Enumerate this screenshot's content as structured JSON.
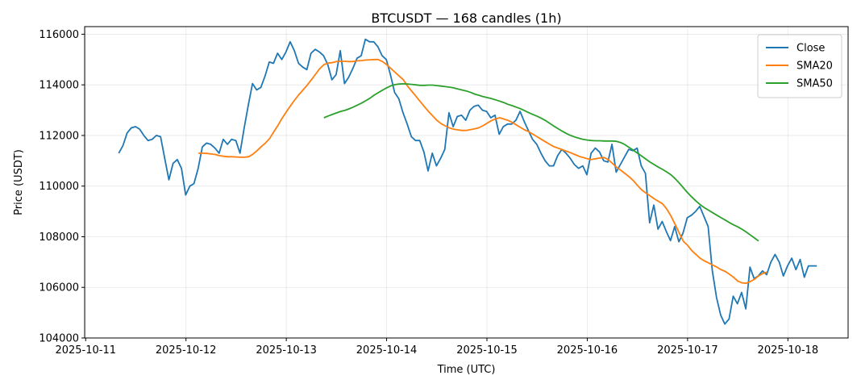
{
  "chart_data": {
    "type": "line",
    "title": "BTCUSDT — 168 candles (1h)",
    "xlabel": "Time (UTC)",
    "ylabel": "Price (USDT)",
    "x_ticks": [
      "2025-10-11",
      "2025-10-12",
      "2025-10-13",
      "2025-10-14",
      "2025-10-15",
      "2025-10-16",
      "2025-10-17",
      "2025-10-18"
    ],
    "y_ticks": [
      "104000",
      "106000",
      "108000",
      "110000",
      "112000",
      "114000",
      "116000"
    ],
    "xlim_days": [
      -0.01,
      7.6
    ],
    "ylim": [
      104000,
      116300
    ],
    "grid": true,
    "legend_position": "top-right",
    "series": [
      {
        "name": "Close",
        "color": "#1f77b4",
        "start_day": 0.33,
        "step_hours": 1,
        "values": [
          111300,
          111600,
          112100,
          112300,
          112350,
          112250,
          112000,
          111800,
          111850,
          112000,
          111950,
          111100,
          110250,
          110900,
          111050,
          110700,
          109650,
          110000,
          110100,
          110700,
          111550,
          111700,
          111650,
          111500,
          111300,
          111850,
          111650,
          111850,
          111800,
          111300,
          112300,
          113200,
          114050,
          113800,
          113900,
          114350,
          114900,
          114850,
          115250,
          115000,
          115300,
          115700,
          115350,
          114850,
          114700,
          114600,
          115250,
          115400,
          115300,
          115150,
          114800,
          114200,
          114400,
          115350,
          114050,
          114300,
          114650,
          115050,
          115150,
          115800,
          115700,
          115700,
          115500,
          115150,
          115000,
          114400,
          113700,
          113450,
          112900,
          112450,
          111950,
          111800,
          111800,
          111350,
          110600,
          111300,
          110800,
          111100,
          111450,
          112900,
          112350,
          112750,
          112800,
          112600,
          113000,
          113150,
          113200,
          113000,
          112950,
          112700,
          112800,
          112050,
          112350,
          112450,
          112450,
          112600,
          112950,
          112550,
          112200,
          111850,
          111650,
          111300,
          111000,
          110800,
          110800,
          111200,
          111450,
          111300,
          111100,
          110850,
          110700,
          110800,
          110450,
          111300,
          111500,
          111350,
          111000,
          110950,
          111650,
          110550,
          110850,
          111150,
          111450,
          111400,
          111500,
          110800,
          110500,
          108550,
          109250,
          108300,
          108600,
          108200,
          107850,
          108400,
          107800,
          108150,
          108750,
          108850,
          109000,
          109200,
          108800,
          108400,
          106650,
          105600,
          104900,
          104550,
          104750,
          105650,
          105350,
          105800,
          105150,
          106800,
          106350,
          106450,
          106650,
          106500,
          107000,
          107300,
          107000,
          106450,
          106850,
          107150,
          106700,
          107100,
          106400,
          106850,
          106850,
          106850
        ]
      },
      {
        "name": "SMA20",
        "color": "#ff7f0e",
        "start_day": 1.125,
        "step_hours": 1,
        "values": [
          111300,
          111300,
          111290,
          111270,
          111250,
          111200,
          111180,
          111160,
          111160,
          111150,
          111140,
          111140,
          111160,
          111260,
          111400,
          111560,
          111700,
          111880,
          112140,
          112400,
          112680,
          112930,
          113170,
          113400,
          113610,
          113800,
          113990,
          114200,
          114420,
          114640,
          114800,
          114860,
          114880,
          114920,
          114930,
          114930,
          114920,
          114920,
          114950,
          114960,
          114980,
          114990,
          115000,
          115000,
          114920,
          114800,
          114650,
          114500,
          114350,
          114200,
          113950,
          113750,
          113550,
          113350,
          113150,
          112950,
          112780,
          112600,
          112470,
          112380,
          112300,
          112250,
          112220,
          112200,
          112200,
          112230,
          112260,
          112300,
          112380,
          112480,
          112580,
          112650,
          112700,
          112650,
          112600,
          112520,
          112420,
          112320,
          112220,
          112150,
          112050,
          111950,
          111850,
          111750,
          111650,
          111560,
          111500,
          111440,
          111380,
          111320,
          111250,
          111180,
          111130,
          111080,
          111050,
          111080,
          111110,
          111130,
          111050,
          110900,
          110750,
          110630,
          110500,
          110370,
          110220,
          110030,
          109850,
          109730,
          109620,
          109500,
          109400,
          109300,
          109100,
          108820,
          108500,
          108150,
          107820,
          107660,
          107450,
          107300,
          107150,
          107050,
          106970,
          106880,
          106800,
          106700,
          106630,
          106520,
          106400,
          106250,
          106180,
          106160,
          106230,
          106320,
          106450,
          106550,
          106600
        ]
      },
      {
        "name": "SMA50",
        "color": "#2ca02c",
        "start_day": 2.375,
        "step_hours": 1,
        "values": [
          112700,
          112770,
          112830,
          112890,
          112950,
          112990,
          113050,
          113120,
          113200,
          113280,
          113370,
          113470,
          113590,
          113690,
          113790,
          113880,
          113960,
          114010,
          114030,
          114040,
          114030,
          114020,
          114000,
          113980,
          113980,
          113990,
          113990,
          113970,
          113950,
          113930,
          113910,
          113880,
          113840,
          113800,
          113760,
          113710,
          113640,
          113590,
          113540,
          113500,
          113460,
          113410,
          113360,
          113300,
          113230,
          113180,
          113120,
          113060,
          112980,
          112900,
          112830,
          112760,
          112680,
          112590,
          112480,
          112370,
          112270,
          112170,
          112080,
          112000,
          111940,
          111890,
          111850,
          111820,
          111800,
          111790,
          111790,
          111780,
          111780,
          111780,
          111770,
          111720,
          111640,
          111530,
          111420,
          111300,
          111190,
          111070,
          110950,
          110850,
          110750,
          110660,
          110560,
          110450,
          110300,
          110120,
          109930,
          109740,
          109570,
          109410,
          109270,
          109150,
          109050,
          108950,
          108850,
          108750,
          108660,
          108560,
          108470,
          108390,
          108300,
          108190,
          108070,
          107950,
          107830
        ]
      }
    ]
  }
}
